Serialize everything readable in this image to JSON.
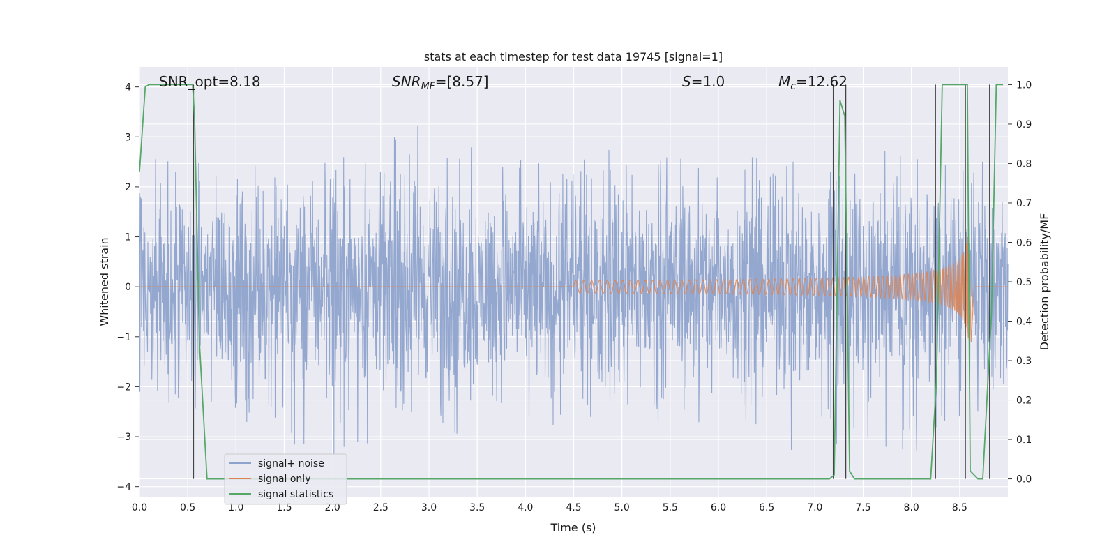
{
  "chart_data": {
    "type": "line",
    "title": "stats at each timestep for test data 19745 [signal=1]",
    "xlabel": "Time (s)",
    "ylabel": "Whitened strain",
    "ylabel_right": "Detection probability/MF",
    "xlim": [
      0.0,
      9.0
    ],
    "ylim": [
      -4.2,
      4.4
    ],
    "ylim_right": [
      -0.045,
      1.045
    ],
    "xticks": [
      "0.0",
      "0.5",
      "1.0",
      "1.5",
      "2.0",
      "2.5",
      "3.0",
      "3.5",
      "4.0",
      "4.5",
      "5.0",
      "5.5",
      "6.0",
      "6.5",
      "7.0",
      "7.5",
      "8.0",
      "8.5"
    ],
    "yticks": [
      "4",
      "3",
      "2",
      "1",
      "0",
      "−1",
      "−2",
      "−3",
      "−4"
    ],
    "yticks_right": [
      "1.0",
      "0.9",
      "0.8",
      "0.7",
      "0.6",
      "0.5",
      "0.4",
      "0.3",
      "0.2",
      "0.1",
      "0.0"
    ],
    "grid": true,
    "legend_position": "lower-left",
    "annotations": {
      "snr_opt": "SNR_opt=8.18",
      "snr_mf_base": "SNR",
      "snr_mf_sub": "MF",
      "snr_mf_value": "=[8.57]",
      "s_symbol": "S",
      "s_value": "=1.0",
      "mc_symbol": "M",
      "mc_sub": "c",
      "mc_value": "=12.62"
    },
    "series": [
      {
        "name": "signal+ noise",
        "color": "#8ea3cc",
        "description_envelope": {
          "t": [
            0.0,
            0.5,
            1.0,
            1.5,
            2.0,
            2.5,
            3.0,
            3.5,
            4.0,
            4.5,
            5.0,
            5.5,
            6.0,
            6.5,
            7.0,
            7.5,
            8.0,
            8.5,
            9.0
          ],
          "max": [
            2.3,
            3.2,
            2.5,
            2.3,
            2.6,
            2.9,
            3.5,
            3.0,
            2.5,
            2.6,
            2.8,
            2.6,
            2.5,
            3.3,
            2.3,
            2.9,
            2.7,
            2.7,
            2.5
          ],
          "min": [
            -2.1,
            -2.5,
            -2.6,
            -3.1,
            -3.5,
            -3.4,
            -2.8,
            -3.2,
            -2.6,
            -2.9,
            -2.6,
            -3.0,
            -2.6,
            -3.4,
            -3.2,
            -3.1,
            -3.4,
            -2.6,
            -2.3
          ]
        }
      },
      {
        "name": "signal only",
        "color": "#dd8452",
        "chirp": {
          "t_start": 4.5,
          "t_merge": 8.6,
          "t_end": 9.0,
          "peak_amplitude": 1.3
        }
      },
      {
        "name": "signal statistics",
        "color": "#55a868",
        "axis": "right",
        "t": [
          0.0,
          0.06,
          0.1,
          0.55,
          0.57,
          0.62,
          0.7,
          7.15,
          7.2,
          7.26,
          7.31,
          7.36,
          7.41,
          8.2,
          8.26,
          8.32,
          8.58,
          8.61,
          8.69,
          8.74,
          8.83,
          8.88,
          8.95
        ],
        "values": [
          0.78,
          0.995,
          1.0,
          1.0,
          0.92,
          0.35,
          0.0,
          0.0,
          0.01,
          0.96,
          0.92,
          0.02,
          0.0,
          0.0,
          0.25,
          1.0,
          1.0,
          0.02,
          0.0,
          0.0,
          0.42,
          1.0,
          1.0
        ]
      }
    ],
    "vlines": [
      0.56,
      7.19,
      7.32,
      8.25,
      8.56,
      8.81
    ]
  },
  "legend": {
    "items": [
      {
        "label": "signal+ noise",
        "color": "#8ea3cc"
      },
      {
        "label": "signal only",
        "color": "#dd8452"
      },
      {
        "label": "signal statistics",
        "color": "#55a868"
      }
    ]
  }
}
